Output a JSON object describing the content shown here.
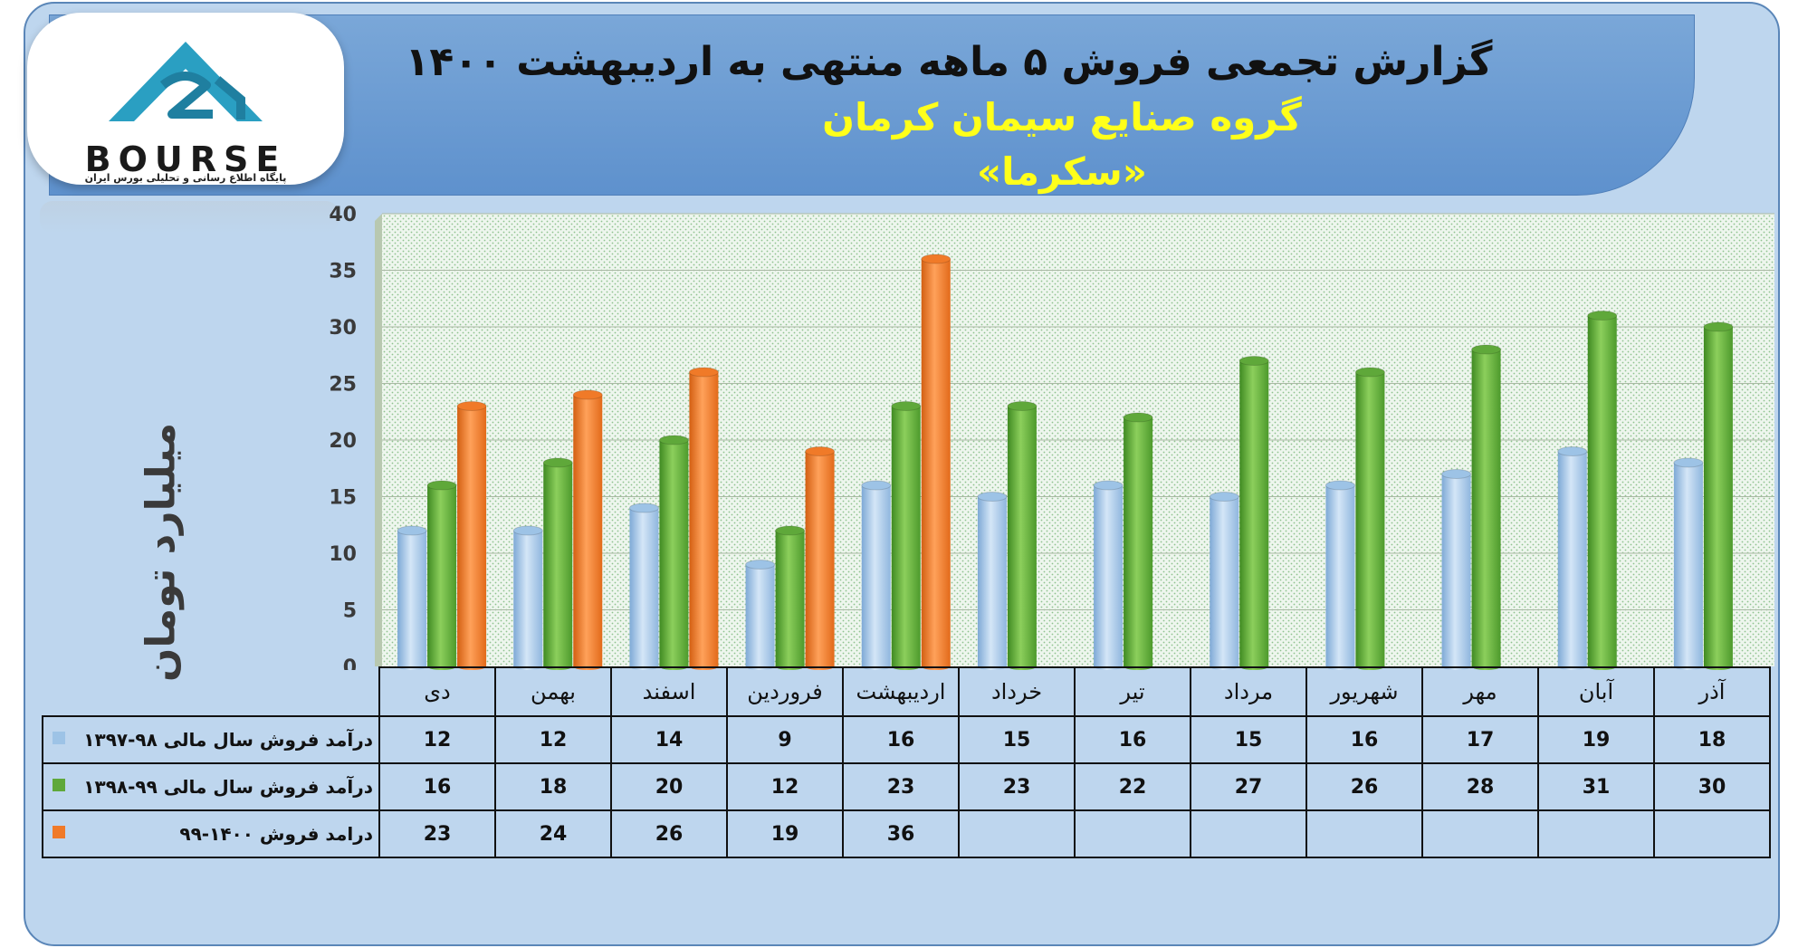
{
  "header": {
    "title": "گزارش تجمعی فروش ۵ ماهه منتهی به اردیبهشت ۱۴۰۰",
    "subtitle": "گروه صنایع سیمان کرمان",
    "ticker": "«سکرما»"
  },
  "logo": {
    "icon": "bourse-triangle-logo-icon",
    "word": "BOURSE",
    "tagline": "پایگاه اطلاع رسانی و تحلیلی بورس ایران"
  },
  "colors": {
    "frame_bg": "#bed6ee",
    "header_bg": "#6497d0",
    "subtitle": "#ffff1a",
    "series": [
      "#9dc3e6",
      "#5fa83a",
      "#f07a28"
    ]
  },
  "chart_data": {
    "type": "bar",
    "ylabel": "میلیارد تومان",
    "ylim": [
      0,
      40
    ],
    "yticks": [
      0,
      5,
      10,
      15,
      20,
      25,
      30,
      35,
      40
    ],
    "grid": true,
    "categories": [
      "دی",
      "بهمن",
      "اسفند",
      "فروردین",
      "اردیبهشت",
      "خرداد",
      "تیر",
      "مرداد",
      "شهریور",
      "مهر",
      "آبان",
      "آذر"
    ],
    "series": [
      {
        "name": "درآمد فروش سال مالی ۹۸-۱۳۹۷",
        "color": "#9dc3e6",
        "values": [
          12,
          12,
          14,
          9,
          16,
          15,
          16,
          15,
          16,
          17,
          19,
          18
        ]
      },
      {
        "name": "درآمد فروش سال مالی ۹۹-۱۳۹۸",
        "color": "#5fa83a",
        "values": [
          16,
          18,
          20,
          12,
          23,
          23,
          22,
          27,
          26,
          28,
          31,
          30
        ]
      },
      {
        "name": "درامد فروش ۱۴۰۰-۹۹",
        "color": "#f07a28",
        "values": [
          23,
          24,
          26,
          19,
          36,
          null,
          null,
          null,
          null,
          null,
          null,
          null
        ]
      }
    ]
  }
}
